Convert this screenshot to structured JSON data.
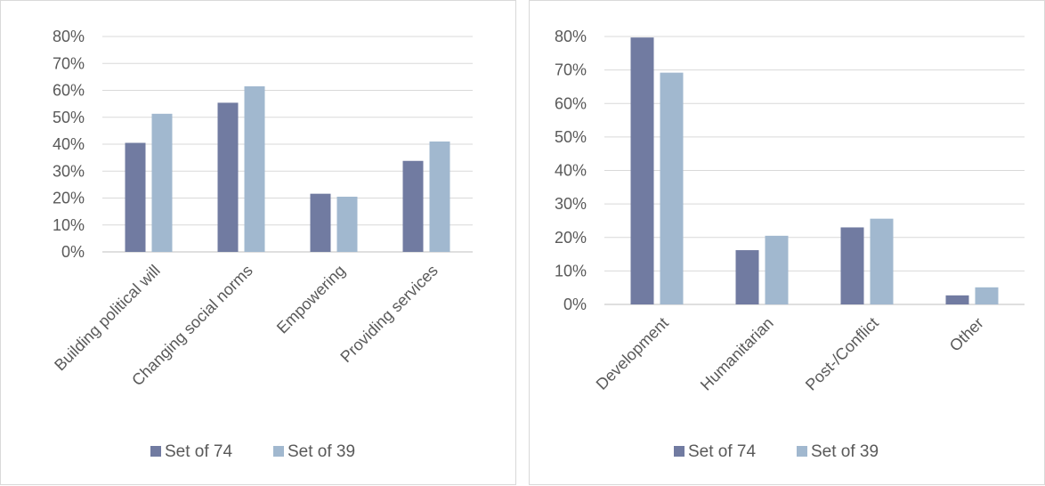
{
  "chart_data": [
    {
      "type": "bar",
      "categories": [
        "Building political will",
        "Changing social norms",
        "Empowering",
        "Providing services"
      ],
      "series": [
        {
          "name": "Set of 74",
          "values": [
            40.5,
            55.4,
            21.6,
            33.8
          ],
          "color": "#717ba1"
        },
        {
          "name": "Set of 39",
          "values": [
            51.3,
            61.5,
            20.5,
            41.0
          ],
          "color": "#a1b8cf"
        }
      ],
      "yticks": [
        "0%",
        "10%",
        "20%",
        "30%",
        "40%",
        "50%",
        "60%",
        "70%",
        "80%"
      ],
      "ylim": [
        0,
        80
      ],
      "grid": true,
      "legend": "bottom"
    },
    {
      "type": "bar",
      "categories": [
        "Development",
        "Humanitarian",
        "Post-/Conflict",
        "Other"
      ],
      "series": [
        {
          "name": "Set of 74",
          "values": [
            79.7,
            16.2,
            23.0,
            2.7
          ],
          "color": "#717ba1"
        },
        {
          "name": "Set of 39",
          "values": [
            69.2,
            20.5,
            25.6,
            5.1
          ],
          "color": "#a1b8cf"
        }
      ],
      "yticks": [
        "0%",
        "10%",
        "20%",
        "30%",
        "40%",
        "50%",
        "60%",
        "70%",
        "80%"
      ],
      "ylim": [
        0,
        80
      ],
      "grid": true,
      "legend": "bottom"
    }
  ]
}
